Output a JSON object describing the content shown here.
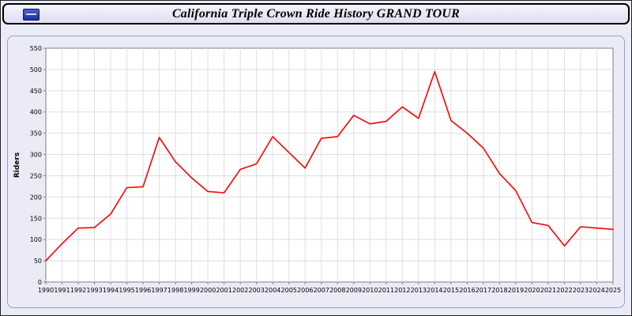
{
  "page": {
    "title": "California Triple Crown Ride History GRAND TOUR"
  },
  "colors": {
    "line": "#ff0000",
    "page_background": "#ebebf7",
    "plot_background": "#ffffff",
    "grid": "#dedede",
    "axis": "#7f7f7f"
  },
  "chart_data": {
    "type": "line",
    "title": "California Triple Crown Ride History GRAND TOUR",
    "xlabel": "",
    "ylabel": "Riders",
    "ylim": [
      0,
      550
    ],
    "ytick_step": 50,
    "grid": true,
    "legend": "none",
    "categories": [
      "1990",
      "1991",
      "1992",
      "1993",
      "1994",
      "1995",
      "1996",
      "1997",
      "1998",
      "1999",
      "2000",
      "2001",
      "2002",
      "2003",
      "2004",
      "2005",
      "2006",
      "2007",
      "2008",
      "2009",
      "2010",
      "2011",
      "2012",
      "2013",
      "2014",
      "2015",
      "2016",
      "2017",
      "2018",
      "2019",
      "2020",
      "2021",
      "2022",
      "2023",
      "2024",
      "2025"
    ],
    "series": [
      {
        "name": "Riders",
        "values": [
          50,
          90,
          127,
          128,
          160,
          222,
          224,
          340,
          283,
          245,
          213,
          210,
          265,
          278,
          342,
          305,
          268,
          338,
          342,
          392,
          372,
          378,
          412,
          385,
          495,
          380,
          350,
          315,
          255,
          215,
          140,
          133,
          85,
          130,
          127,
          124
        ]
      }
    ]
  }
}
